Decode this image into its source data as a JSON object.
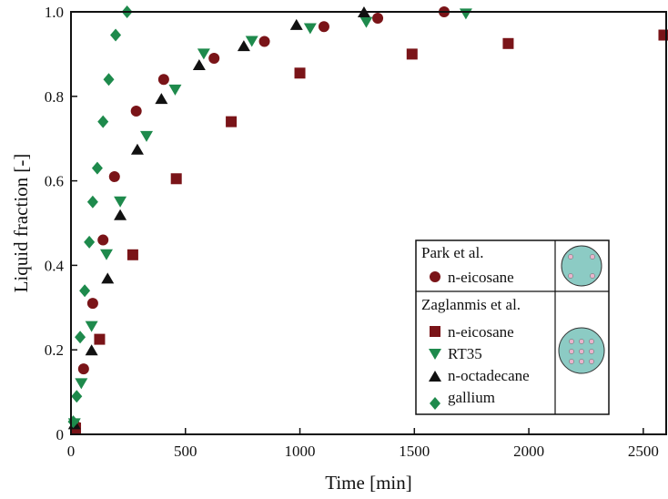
{
  "chart_data": {
    "type": "scatter",
    "xlabel": "Time [min]",
    "ylabel": "Liquid fraction [-]",
    "xlim": [
      0,
      2600
    ],
    "ylim": [
      0,
      1.0
    ],
    "xticks": [
      0,
      500,
      1000,
      1500,
      2000,
      2500
    ],
    "yticks": [
      0,
      0.2,
      0.4,
      0.6,
      0.8,
      1.0
    ],
    "xtick_labels": [
      "0",
      "500",
      "1000",
      "1500",
      "2000",
      "2500"
    ],
    "ytick_labels": [
      "0",
      "0.2",
      "0.4",
      "0.6",
      "0.8",
      "1.0"
    ],
    "grid": false,
    "legend_position": "bottom-right",
    "series": [
      {
        "name": "n-eicosane",
        "group": "Park et al.",
        "marker": "circle",
        "color": "#7a1418",
        "x": [
          20,
          55,
          95,
          140,
          190,
          285,
          405,
          625,
          845,
          1105,
          1340,
          1630
        ],
        "y": [
          0.02,
          0.155,
          0.31,
          0.46,
          0.61,
          0.765,
          0.84,
          0.89,
          0.93,
          0.965,
          0.985,
          1.0
        ]
      },
      {
        "name": "n-eicosane",
        "group": "Zaglanmis et al.",
        "marker": "square",
        "color": "#7a1418",
        "x": [
          20,
          125,
          270,
          460,
          700,
          1000,
          1490,
          1910,
          2590
        ],
        "y": [
          0.015,
          0.225,
          0.425,
          0.605,
          0.74,
          0.855,
          0.9,
          0.925,
          0.945
        ]
      },
      {
        "name": "RT35",
        "group": "Zaglanmis et al.",
        "marker": "triangle-down",
        "color": "#1e8a4c",
        "x": [
          15,
          45,
          90,
          155,
          215,
          330,
          455,
          580,
          790,
          1045,
          1290,
          1725
        ],
        "y": [
          0.025,
          0.12,
          0.255,
          0.425,
          0.55,
          0.705,
          0.815,
          0.9,
          0.93,
          0.96,
          0.975,
          0.995
        ]
      },
      {
        "name": "n-octadecane",
        "group": "Zaglanmis et al.",
        "marker": "triangle-up",
        "color": "#111111",
        "x": [
          15,
          90,
          160,
          215,
          290,
          395,
          560,
          755,
          985,
          1280
        ],
        "y": [
          0.025,
          0.2,
          0.37,
          0.52,
          0.675,
          0.795,
          0.875,
          0.92,
          0.97,
          1.0
        ]
      },
      {
        "name": "gallium",
        "group": "Zaglanmis et al.",
        "marker": "diamond",
        "color": "#1e8a4c",
        "x": [
          10,
          25,
          40,
          60,
          80,
          95,
          115,
          140,
          165,
          195,
          245
        ],
        "y": [
          0.03,
          0.09,
          0.23,
          0.34,
          0.455,
          0.55,
          0.63,
          0.74,
          0.84,
          0.945,
          1.0
        ]
      }
    ],
    "legend": {
      "group1_title": "Park et al.",
      "group1_entries": [
        "n-eicosane"
      ],
      "group2_title": "Zaglanmis et al.",
      "group2_entries": [
        "n-eicosane",
        "RT35",
        "n-octadecane",
        "gallium"
      ],
      "icon_fill": "#8ccbc4",
      "icon_dot": "#e8b4cc"
    }
  }
}
